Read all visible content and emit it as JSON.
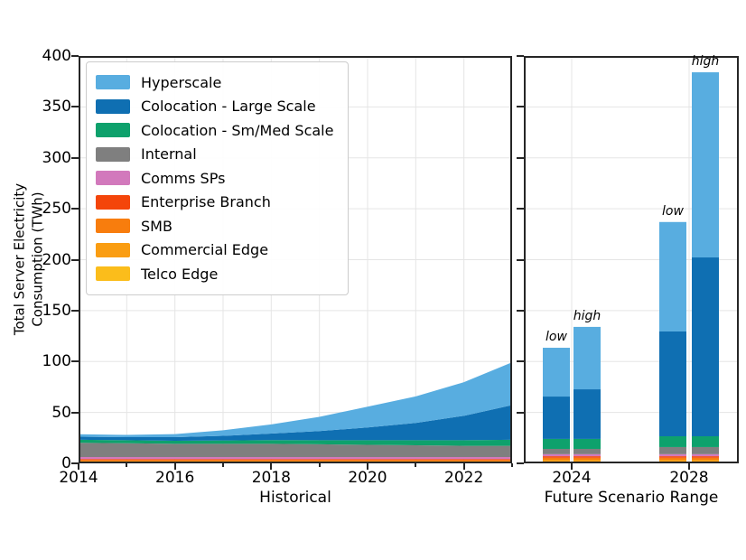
{
  "axis": {
    "ylabel_line1": "Total Server Electricity",
    "ylabel_line2": "Consumption (TWh)"
  },
  "legend": {
    "items": [
      {
        "label": "Hyperscale",
        "color": "#58ADE0"
      },
      {
        "label": "Colocation - Large Scale",
        "color": "#0F6FB2"
      },
      {
        "label": "Colocation - Sm/Med Scale",
        "color": "#0EA16C"
      },
      {
        "label": "Internal",
        "color": "#7F7F7F"
      },
      {
        "label": "Comms SPs",
        "color": "#D279BC"
      },
      {
        "label": "Enterprise Branch",
        "color": "#F4450A"
      },
      {
        "label": "SMB",
        "color": "#F87D0D"
      },
      {
        "label": "Commercial Edge",
        "color": "#FA9D12"
      },
      {
        "label": "Telco Edge",
        "color": "#FBBD1B"
      }
    ]
  },
  "chart_data": [
    {
      "id": "historical",
      "type": "area",
      "stacked": true,
      "xlabel": "Historical",
      "ylabel": "Total Server Electricity Consumption (TWh)",
      "ylim": [
        0,
        400
      ],
      "y_ticks": [
        0,
        50,
        100,
        150,
        200,
        250,
        300,
        350,
        400
      ],
      "x": [
        2014,
        2015,
        2016,
        2017,
        2018,
        2019,
        2020,
        2021,
        2022,
        2023
      ],
      "x_major_ticks": [
        2014,
        2016,
        2018,
        2020,
        2022
      ],
      "x_minor_ticks": [
        2015,
        2017,
        2019,
        2021,
        2023
      ],
      "grid": true,
      "legend_position": "upper left",
      "series": [
        {
          "name": "Telco Edge",
          "color": "#FBBD1B",
          "values": [
            1,
            1,
            1,
            1,
            1,
            1,
            1,
            1,
            1,
            1
          ]
        },
        {
          "name": "Commercial Edge",
          "color": "#FA9D12",
          "values": [
            1.2,
            1.2,
            1.2,
            1.2,
            1.2,
            1.2,
            1.2,
            1.2,
            1.2,
            1.2
          ]
        },
        {
          "name": "SMB",
          "color": "#F87D0D",
          "values": [
            1,
            1,
            1,
            1,
            1,
            1,
            1,
            1,
            1,
            1
          ]
        },
        {
          "name": "Enterprise Branch",
          "color": "#F4450A",
          "values": [
            1,
            1,
            1,
            1,
            1,
            1,
            1,
            1,
            1,
            1
          ]
        },
        {
          "name": "Comms SPs",
          "color": "#D279BC",
          "values": [
            2,
            2,
            2,
            2,
            2,
            2,
            2,
            2,
            2,
            2
          ]
        },
        {
          "name": "Internal",
          "color": "#7F7F7F",
          "values": [
            14,
            13.5,
            13,
            13,
            13,
            12.5,
            12,
            11.5,
            11,
            11
          ]
        },
        {
          "name": "Colocation - Sm/Med Scale",
          "color": "#0EA16C",
          "values": [
            3,
            3,
            3,
            3.3,
            3.6,
            4,
            4.5,
            5,
            5.5,
            6
          ]
        },
        {
          "name": "Colocation - Large Scale",
          "color": "#0F6FB2",
          "values": [
            3,
            3,
            3.5,
            4.5,
            6.5,
            9,
            12.5,
            17,
            24,
            34
          ]
        },
        {
          "name": "Hyperscale",
          "color": "#58ADE0",
          "values": [
            2.4,
            2.2,
            3,
            5.5,
            9,
            14,
            20.5,
            26,
            33,
            42
          ]
        }
      ]
    },
    {
      "id": "future",
      "type": "bar",
      "stacked": true,
      "xlabel": "Future Scenario Range",
      "ylim": [
        0,
        400
      ],
      "shares_y_axis_with": "historical",
      "x_tick_labels": [
        "2024",
        "2028"
      ],
      "grid": true,
      "series_order": [
        "Telco Edge",
        "Commercial Edge",
        "SMB",
        "Enterprise Branch",
        "Comms SPs",
        "Internal",
        "Colocation - Sm/Med Scale",
        "Colocation - Large Scale",
        "Hyperscale"
      ],
      "series_colors": [
        "#FBBD1B",
        "#FA9D12",
        "#F87D0D",
        "#F4450A",
        "#D279BC",
        "#7F7F7F",
        "#0EA16C",
        "#0F6FB2",
        "#58ADE0"
      ],
      "bars": [
        {
          "group": "2024",
          "label": "low",
          "values": [
            1.5,
            2,
            2,
            1.5,
            2,
            5.2,
            9.8,
            41.6,
            47.9
          ],
          "total": 113.5
        },
        {
          "group": "2024",
          "label": "high",
          "values": [
            1.5,
            2,
            2,
            1.5,
            2,
            5.2,
            9.8,
            48.7,
            61.3
          ],
          "total": 134
        },
        {
          "group": "2028",
          "label": "low",
          "values": [
            1.5,
            2,
            2,
            1.5,
            2,
            7,
            10.6,
            102.9,
            107.5
          ],
          "total": 237
        },
        {
          "group": "2028",
          "label": "high",
          "values": [
            1.5,
            2,
            2,
            1.5,
            2,
            7,
            10.6,
            175.6,
            181.8
          ],
          "total": 384
        }
      ]
    }
  ]
}
